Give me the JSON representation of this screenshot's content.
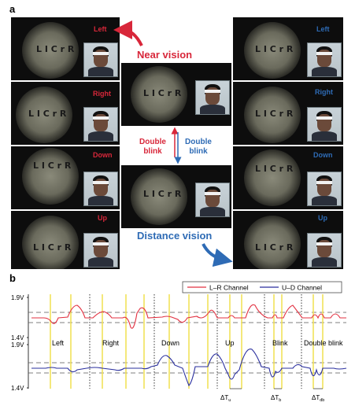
{
  "panel_a": {
    "label": "a",
    "left_caps": [
      "Left",
      "Right",
      "Down",
      "Up"
    ],
    "right_caps": [
      "Left",
      "Right",
      "Down",
      "Up"
    ],
    "near_vision": "Near vision",
    "distance_vision": "Distance vision",
    "double_blink_red": "Double\nblink",
    "double_blink_blue": "Double\nblink",
    "colors": {
      "red": "#d8273a",
      "blue": "#2e6bb5"
    }
  },
  "panel_b": {
    "label": "b",
    "legend": [
      "L–R Channel",
      "U–D Channel"
    ],
    "y_labels": [
      "1.9V",
      "1.4V",
      "1.9V",
      "1.4V"
    ],
    "segments": [
      "Left",
      "Right",
      "Down",
      "Up",
      "Blink",
      "Double blink"
    ],
    "dt_labels": [
      "ΔT",
      "ΔT",
      "ΔT"
    ],
    "dt_subs": [
      "u",
      "b",
      "db"
    ],
    "colors": {
      "lr": "#e23040",
      "ud": "#2a2f9e",
      "marker": "#f2e25a"
    }
  }
}
